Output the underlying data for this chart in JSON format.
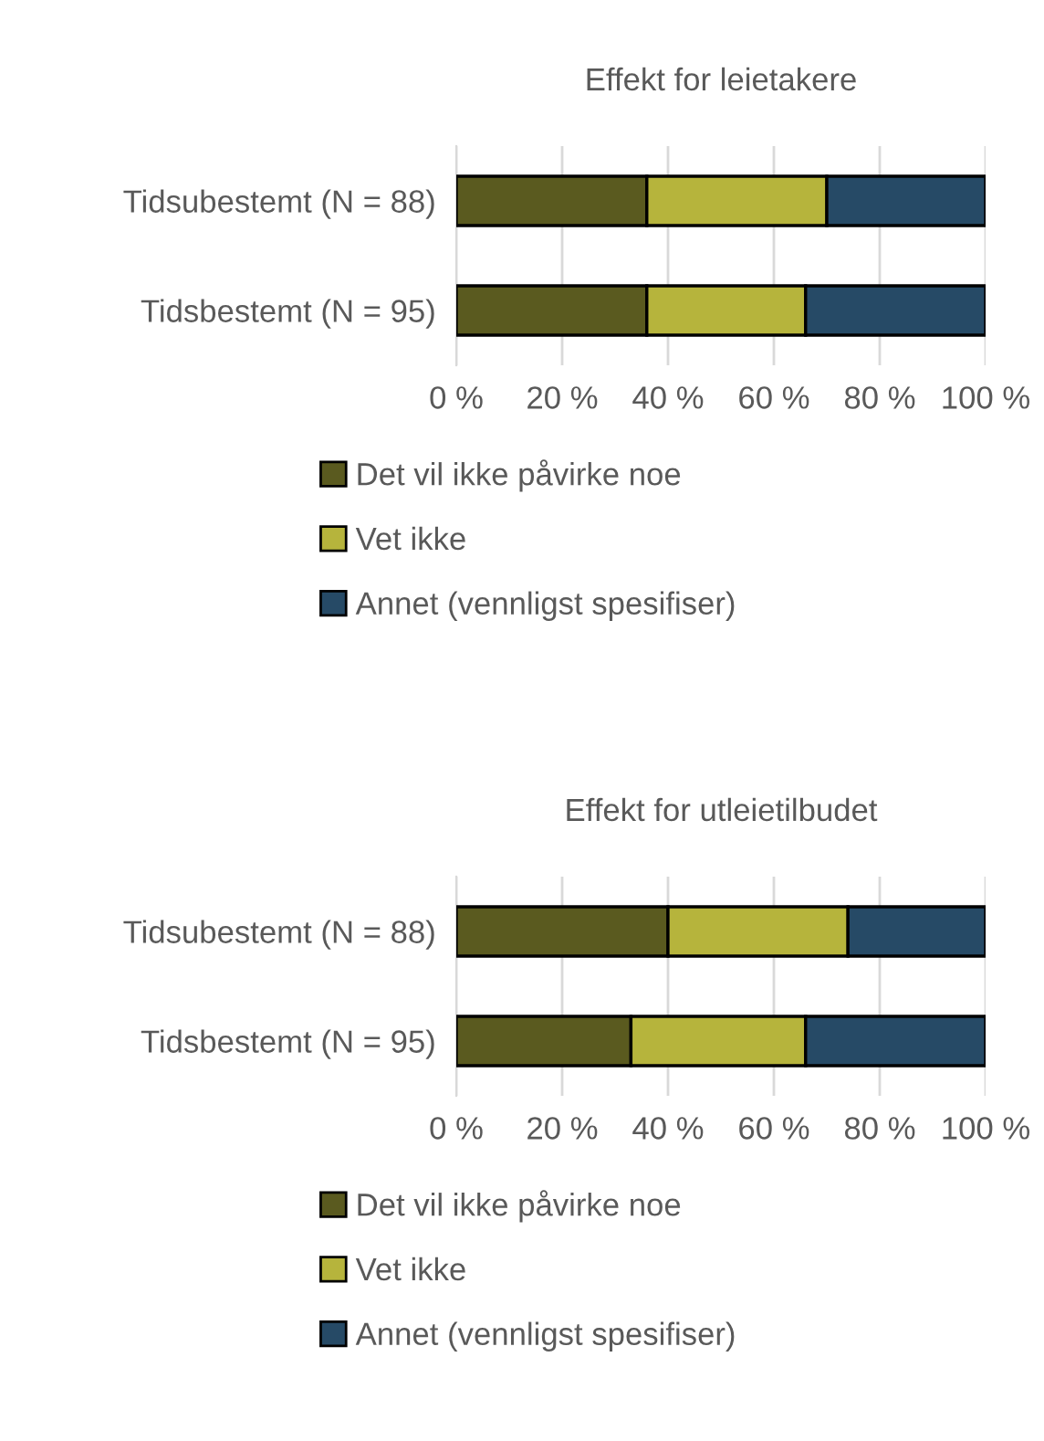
{
  "chart_data": [
    {
      "type": "bar",
      "orientation": "horizontal",
      "stacked": true,
      "title": "Effekt for leietakere",
      "categories": [
        "Tidsubestemt (N = 88)",
        "Tidsbestemt (N = 95)"
      ],
      "series": [
        {
          "name": "Det vil ikke påvirke noe",
          "color": "#5a5a1f",
          "values": [
            36,
            36
          ]
        },
        {
          "name": "Vet ikke",
          "color": "#b6b43c",
          "values": [
            34,
            30
          ]
        },
        {
          "name": "Annet (vennligst spesifiser)",
          "color": "#264a66",
          "values": [
            30,
            34
          ]
        }
      ],
      "xlim": [
        0,
        100
      ],
      "xticks": [
        {
          "value": 0,
          "label": "0 %"
        },
        {
          "value": 20,
          "label": "20 %"
        },
        {
          "value": 40,
          "label": "40 %"
        },
        {
          "value": 60,
          "label": "60 %"
        },
        {
          "value": 80,
          "label": "80 %"
        },
        {
          "value": 100,
          "label": "100 %"
        }
      ],
      "grid": "x",
      "legend": "bottom"
    },
    {
      "type": "bar",
      "orientation": "horizontal",
      "stacked": true,
      "title": "Effekt for utleietilbudet",
      "categories": [
        "Tidsubestemt (N = 88)",
        "Tidsbestemt (N = 95)"
      ],
      "series": [
        {
          "name": "Det vil ikke påvirke noe",
          "color": "#5a5a1f",
          "values": [
            40,
            33
          ]
        },
        {
          "name": "Vet ikke",
          "color": "#b6b43c",
          "values": [
            34,
            33
          ]
        },
        {
          "name": "Annet (vennligst spesifiser)",
          "color": "#264a66",
          "values": [
            26,
            34
          ]
        }
      ],
      "xlim": [
        0,
        100
      ],
      "xticks": [
        {
          "value": 0,
          "label": "0 %"
        },
        {
          "value": 20,
          "label": "20 %"
        },
        {
          "value": 40,
          "label": "40 %"
        },
        {
          "value": 60,
          "label": "60 %"
        },
        {
          "value": 80,
          "label": "80 %"
        },
        {
          "value": 100,
          "label": "100 %"
        }
      ],
      "grid": "x",
      "legend": "bottom"
    }
  ]
}
